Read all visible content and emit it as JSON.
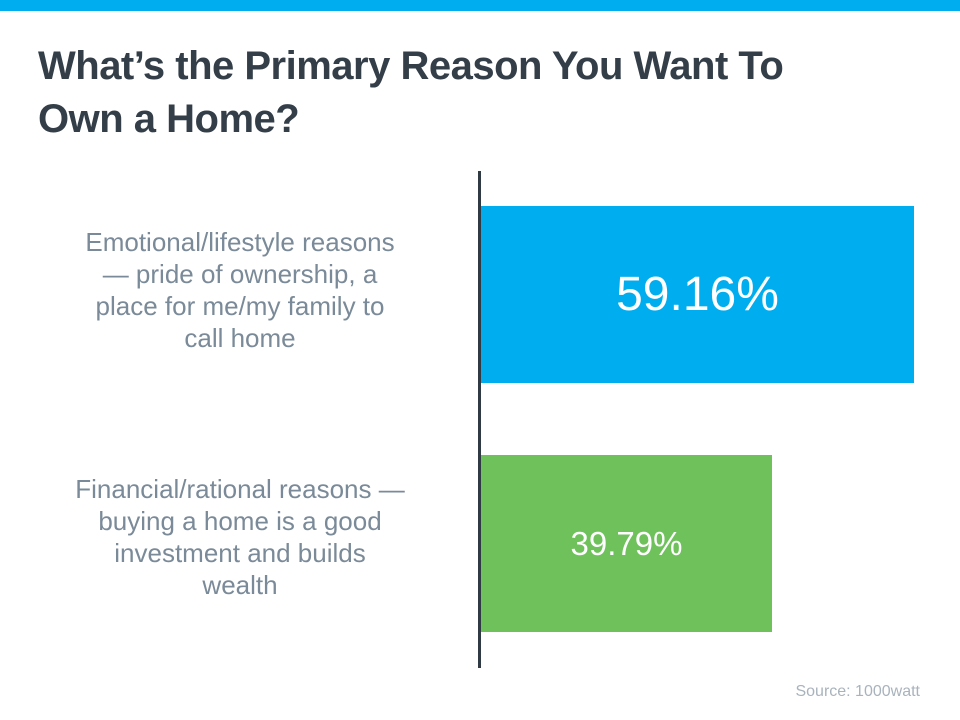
{
  "title": {
    "line1": "What’s the Primary Reason You Want To",
    "line2": "Own a Home?"
  },
  "source": {
    "text": "Source: 1000watt"
  },
  "colors": {
    "accent_strip": "#00AEEF",
    "title_text": "#333E48",
    "axis_line": "#2F3A44",
    "category_label_text": "#7A8A98",
    "value_label_text": "#FFFFFF",
    "source_text": "#A9B3BD",
    "bar_blue": "#00AEEF",
    "bar_green": "#6FC15C"
  },
  "chart_data": {
    "type": "bar",
    "orientation": "horizontal",
    "title": "What’s the Primary Reason You Want To Own a Home?",
    "categories": [
      "Emotional/lifestyle reasons — pride of ownership, a place for me/my family to call home",
      "Financial/rational reasons — buying a home is a good investment and builds wealth"
    ],
    "category_lines": [
      [
        "Emotional/lifestyle reasons",
        "— pride of ownership, a",
        "place for me/my family to",
        "call home"
      ],
      [
        "Financial/rational reasons —",
        "buying a home is a good",
        "investment and builds",
        "wealth"
      ]
    ],
    "values": [
      59.16,
      39.79
    ],
    "value_labels": [
      "59.16%",
      "39.79%"
    ],
    "series_colors": [
      "#00AEEF",
      "#6FC15C"
    ],
    "value_label_position": "inside",
    "legend": "none",
    "grid": "off",
    "annotations": [
      "Source: 1000watt"
    ]
  }
}
